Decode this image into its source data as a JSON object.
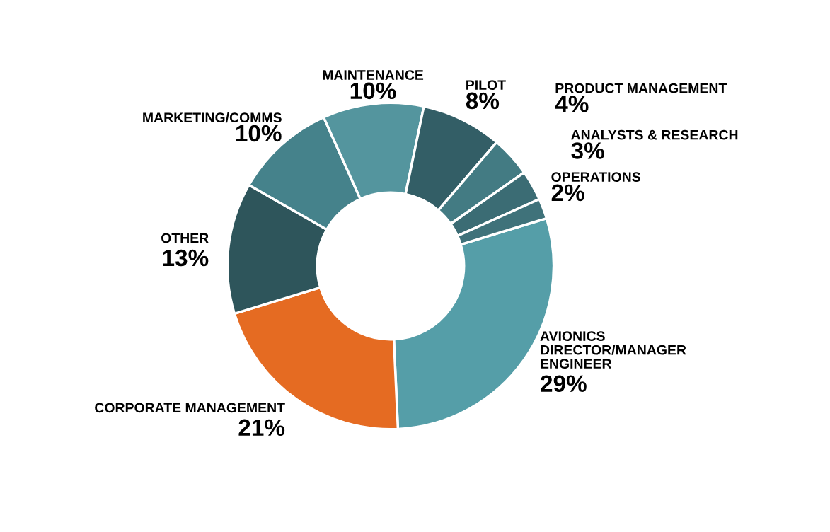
{
  "chart_data": {
    "type": "donut",
    "categories": [
      "AVIONICS\nDIRECTOR/MANAGER\nENGINEER",
      "CORPORATE MANAGEMENT",
      "OTHER",
      "MARKETING/COMMS",
      "MAINTENANCE",
      "PILOT",
      "PRODUCT MANAGEMENT",
      "ANALYSTS & RESEARCH",
      "OPERATIONS"
    ],
    "values": [
      29,
      21,
      13,
      10,
      10,
      8,
      4,
      3,
      2
    ],
    "colors": [
      "#559ea8",
      "#e56b22",
      "#2e555b",
      "#45828b",
      "#54959e",
      "#335e66",
      "#437b83",
      "#3b6c74",
      "#3f727a"
    ],
    "value_labels": [
      "29%",
      "21%",
      "13%",
      "10%",
      "10%",
      "8%",
      "4%",
      "3%",
      "2%"
    ],
    "legend": false
  }
}
